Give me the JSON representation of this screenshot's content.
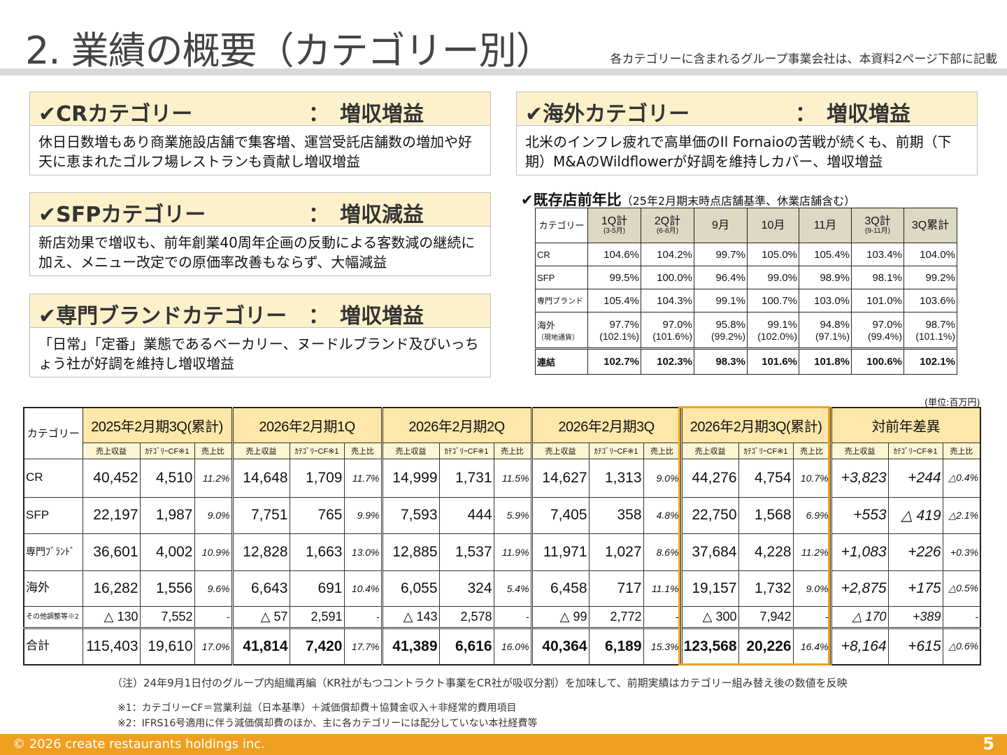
{
  "header": {
    "title": "2. 業績の概要（カテゴリー別）",
    "note": "各カテゴリーに含まれるグループ事業会社は、本資料2ページ下部に記載"
  },
  "boxes": [
    {
      "label": "✔CRカテゴリー",
      "sep": "：",
      "result": "増収増益",
      "body": "休日日数増もあり商業施設店舗で集客増、運営受託店舗数の増加や好天に恵まれたゴルフ場レストランも貢献し増収増益"
    },
    {
      "label": "✔SFPカテゴリー",
      "sep": "：",
      "result": "増収減益",
      "body": "新店効果で増収も、前年創業40周年企画の反動による客数減の継続に加え、メニュー改定での原価率改善もならず、大幅減益"
    },
    {
      "label": "✔専門ブランドカテゴリー",
      "sep": "：",
      "result": "増収増益",
      "body": "「日常」「定番」業態であるベーカリー、ヌードルブランド及びいっちょう社が好調を維持し増収増益"
    },
    {
      "label": "✔海外カテゴリー",
      "sep": "：",
      "result": "増収増益",
      "body": "北米のインフレ疲れで高単価のIl Fornaioの苦戦が続くも、前期（下期）M&AのWildflowerが好調を維持しカバー、増収増益"
    }
  ],
  "yoy": {
    "title": "✔既存店前年比",
    "subtitle": "（25年2月期末時点店舗基準、休業店舗含む）",
    "columns": [
      {
        "label": "カテゴリー",
        "sub": ""
      },
      {
        "label": "1Q計",
        "sub": "(3-5月)"
      },
      {
        "label": "2Q計",
        "sub": "(6-8月)"
      },
      {
        "label": "9月",
        "sub": ""
      },
      {
        "label": "10月",
        "sub": ""
      },
      {
        "label": "11月",
        "sub": ""
      },
      {
        "label": "3Q計",
        "sub": "(9-11月)"
      },
      {
        "label": "3Q累計",
        "sub": ""
      }
    ],
    "rows": [
      {
        "category": "CR",
        "values": [
          "104.6%",
          "104.2%",
          "99.7%",
          "105.0%",
          "105.4%",
          "103.4%",
          "104.0%"
        ]
      },
      {
        "category": "SFP",
        "values": [
          "99.5%",
          "100.0%",
          "96.4%",
          "99.0%",
          "98.9%",
          "98.1%",
          "99.2%"
        ]
      },
      {
        "category": "専門ブランド",
        "values": [
          "105.4%",
          "104.3%",
          "99.1%",
          "100.7%",
          "103.0%",
          "101.0%",
          "103.6%"
        ]
      },
      {
        "category": "海外",
        "sub_category": "（現地通貨）",
        "values": [
          "97.7%",
          "97.0%",
          "95.8%",
          "99.1%",
          "94.8%",
          "97.0%",
          "98.7%"
        ],
        "sub_values": [
          "(102.1%)",
          "(101.6%)",
          "(99.2%)",
          "(102.0%)",
          "(97.1%)",
          "(99.4%)",
          "(101.1%)"
        ]
      },
      {
        "category": "連結",
        "values": [
          "102.7%",
          "102.3%",
          "98.3%",
          "101.6%",
          "101.8%",
          "100.6%",
          "102.1%"
        ]
      }
    ]
  },
  "main": {
    "unit": "(単位:百万円)",
    "category_header": "カテゴリー",
    "groups": [
      "2025年2月期3Q(累計)",
      "2026年2月期1Q",
      "2026年2月期2Q",
      "2026年2月期3Q",
      "2026年2月期3Q(累計)",
      "対前年差異"
    ],
    "subcolumns": [
      "売上収益",
      "ｶﾃｺﾞﾘｰCF※1",
      "売上比"
    ],
    "highlight_color": "#f0a020",
    "rows": [
      {
        "category": "CR",
        "values": [
          "40,452",
          "4,510",
          "11.2%",
          "14,648",
          "1,709",
          "11.7%",
          "14,999",
          "1,731",
          "11.5%",
          "14,627",
          "1,313",
          "9.0%",
          "44,276",
          "4,754",
          "10.7%",
          "+3,823",
          "+244",
          "△0.4%"
        ]
      },
      {
        "category": "SFP",
        "values": [
          "22,197",
          "1,987",
          "9.0%",
          "7,751",
          "765",
          "9.9%",
          "7,593",
          "444",
          "5.9%",
          "7,405",
          "358",
          "4.8%",
          "22,750",
          "1,568",
          "6.9%",
          "+553",
          "△ 419",
          "△2.1%"
        ]
      },
      {
        "category": "専門ﾌﾞﾗﾝﾄﾞ",
        "values": [
          "36,601",
          "4,002",
          "10.9%",
          "12,828",
          "1,663",
          "13.0%",
          "12,885",
          "1,537",
          "11.9%",
          "11,971",
          "1,027",
          "8.6%",
          "37,684",
          "4,228",
          "11.2%",
          "+1,083",
          "+226",
          "+0.3%"
        ]
      },
      {
        "category": "海外",
        "values": [
          "16,282",
          "1,556",
          "9.6%",
          "6,643",
          "691",
          "10.4%",
          "6,055",
          "324",
          "5.4%",
          "6,458",
          "717",
          "11.1%",
          "19,157",
          "1,732",
          "9.0%",
          "+2,875",
          "+175",
          "△0.5%"
        ]
      },
      {
        "category": "その他調整等※2",
        "values": [
          "△ 130",
          "7,552",
          "-",
          "△ 57",
          "2,591",
          "-",
          "△ 143",
          "2,578",
          "-",
          "△ 99",
          "2,772",
          "-",
          "△ 300",
          "7,942",
          "-",
          "△ 170",
          "+389",
          "-"
        ]
      },
      {
        "category": "合計",
        "values": [
          "115,403",
          "19,610",
          "17.0%",
          "41,814",
          "7,420",
          "17.7%",
          "41,389",
          "6,616",
          "16.0%",
          "40,364",
          "6,189",
          "15.3%",
          "123,568",
          "20,226",
          "16.4%",
          "+8,164",
          "+615",
          "△0.6%"
        ]
      }
    ]
  },
  "notes": [
    "（注）24年9月1日付のグループ内組織再編（KR社がもつコントラクト事業をCR社が吸収分割）を加味して、前期実績はカテゴリー組み替え後の数値を反映",
    "※1：カテゴリーCF＝営業利益（日本基準）＋減価償却費＋協賛金収入＋非経常的費用項目",
    "※2：IFRS16号適用に伴う減価償却費のほか、主に各カテゴリーには配分していない本社経費等"
  ],
  "footer": {
    "copyright": "© 2026 create restaurants holdings inc.",
    "page": "5"
  }
}
